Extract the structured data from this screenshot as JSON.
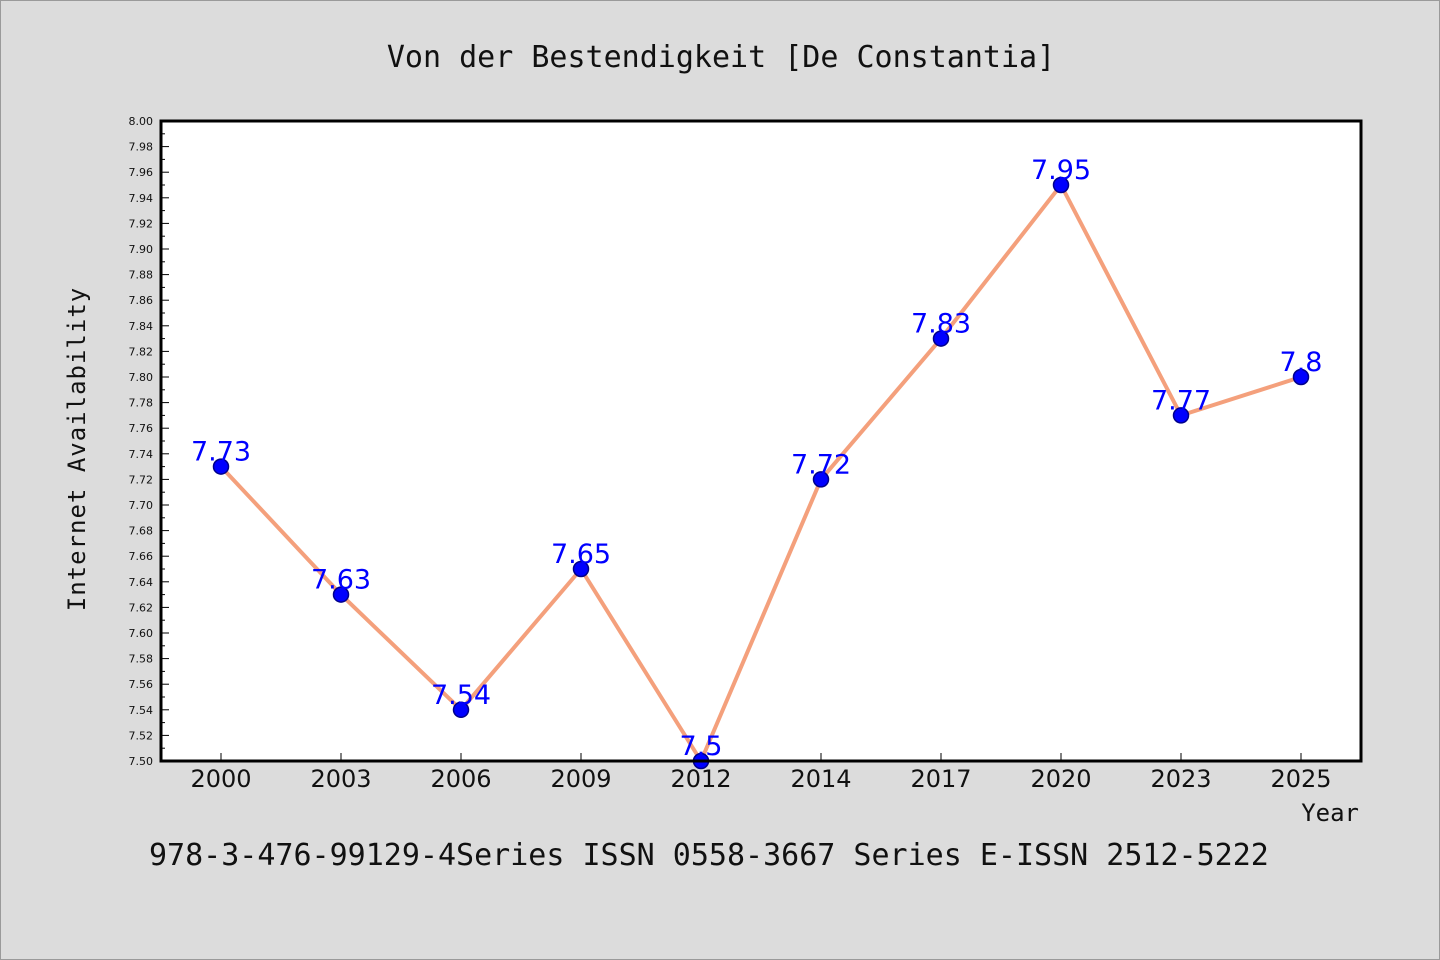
{
  "chart_data": {
    "type": "line",
    "title": "Von der Bestendigkeit [De Constantia]",
    "xlabel": "Year",
    "ylabel": "Internet Availability",
    "categories": [
      "2000",
      "2003",
      "2006",
      "2009",
      "2012",
      "2014",
      "2017",
      "2020",
      "2023",
      "2025"
    ],
    "series": [
      {
        "values": [
          7.73,
          7.63,
          7.54,
          7.65,
          7.5,
          7.72,
          7.83,
          7.95,
          7.77,
          7.8
        ],
        "data_labels": [
          "7.73",
          "7.63",
          "7.54",
          "7.65",
          "7.5",
          "7.72",
          "7.83",
          "7.95",
          "7.77",
          "7.8"
        ],
        "line_color": "#f4a07c",
        "marker_color": "#0000ff"
      }
    ],
    "ylim": [
      7.5,
      8.0
    ],
    "yticks": [
      "7.50",
      "7.52",
      "7.54",
      "7.56",
      "7.58",
      "7.60",
      "7.62",
      "7.64",
      "7.66",
      "7.68",
      "7.70",
      "7.72",
      "7.74",
      "7.76",
      "7.78",
      "7.80",
      "7.82",
      "7.84",
      "7.86",
      "7.88",
      "7.90",
      "7.92",
      "7.94",
      "7.96",
      "7.98",
      "8.00"
    ],
    "grid": false,
    "label_color": "#0000ff"
  },
  "footer": "978-3-476-99129-4Series ISSN 0558-3667 Series E-ISSN 2512-5222"
}
